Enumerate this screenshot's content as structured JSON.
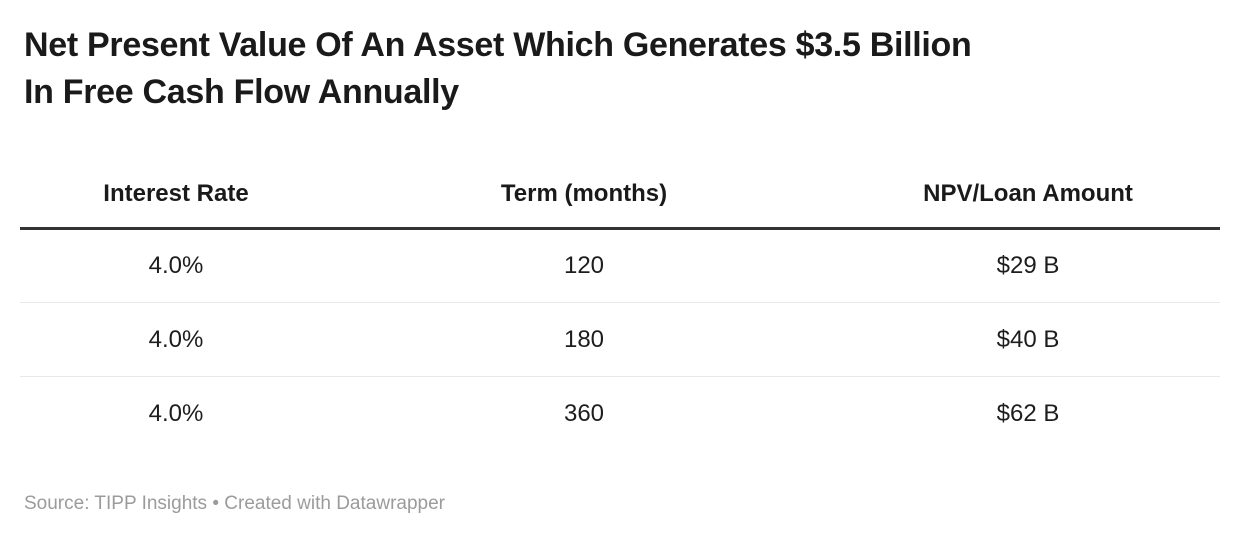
{
  "title": {
    "lines": [
      "Net Present Value Of An Asset Which Generates $3.5 Billion",
      "In Free Cash Flow Annually"
    ]
  },
  "chart_data": {
    "type": "table",
    "title": "Net Present Value Of An Asset Which Generates $3.5 Billion In Free Cash Flow Annually",
    "columns": [
      "Interest Rate",
      "Term (months)",
      "NPV/Loan Amount"
    ],
    "rows": [
      [
        "4.0%",
        "120",
        "$29 B"
      ],
      [
        "4.0%",
        "180",
        "$40 B"
      ],
      [
        "4.0%",
        "360",
        "$62 B"
      ]
    ],
    "notes": {
      "interest_rate_constant": "4.0%",
      "terms_months": [
        120,
        180,
        360
      ],
      "npv_loan_amount_billions_usd": [
        29,
        40,
        62
      ]
    }
  },
  "footer": {
    "text": "Source: TIPP Insights • Created with Datawrapper"
  },
  "colors": {
    "title_text": "#1a1a1a",
    "body_text": "#1d1d1d",
    "header_rule": "#333333",
    "row_divider": "#e9e9e9",
    "muted_text": "#9b9b9b",
    "background": "#ffffff"
  }
}
